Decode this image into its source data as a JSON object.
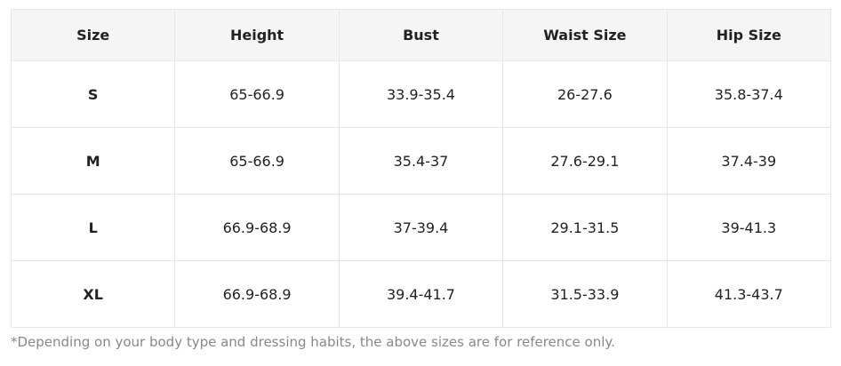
{
  "table": {
    "header": [
      "Size",
      "Height",
      "Bust",
      "Waist Size",
      "Hip Size"
    ],
    "rows": [
      [
        "S",
        "65-66.9",
        "33.9-35.4",
        "26-27.6",
        "35.8-37.4"
      ],
      [
        "M",
        "65-66.9",
        "35.4-37",
        "27.6-29.1",
        "37.4-39"
      ],
      [
        "L",
        "66.9-68.9",
        "37-39.4",
        "29.1-31.5",
        "39-41.3"
      ],
      [
        "XL",
        "66.9-68.9",
        "39.4-41.7",
        "31.5-33.9",
        "41.3-43.7"
      ]
    ]
  },
  "note": "*Depending on your body type and dressing habits, the above sizes are for reference only."
}
